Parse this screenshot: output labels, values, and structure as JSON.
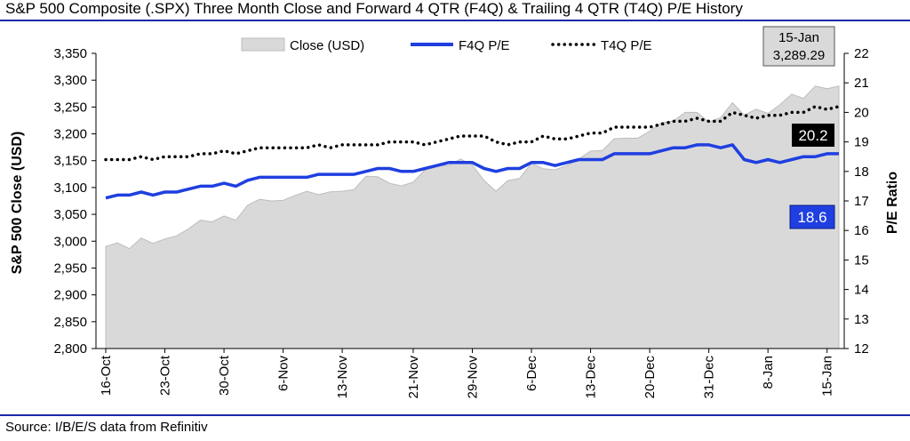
{
  "header": {
    "title": "S&P 500 Composite (.SPX) Three Month Close and Forward 4 QTR (F4Q) & Trailing 4 QTR (T4Q) P/E History"
  },
  "footer": {
    "source": "Source: I/B/E/S data from Refinitiv"
  },
  "colors": {
    "rule": "#1a28a8",
    "area_fill": "#d9d9d9",
    "area_stroke": "#bdbdbd",
    "f4q_line": "#1f3fe0",
    "t4q_line": "#000000",
    "badge_t4q_bg": "#000000",
    "badge_f4q_bg": "#1f3fe0",
    "box_bg": "#d9d9d9"
  },
  "chart_data": {
    "type": "area",
    "xlabel": "",
    "ylabel": "S&P 500 Close (USD)",
    "y2label": "P/E Ratio",
    "ylim": [
      2800,
      3350
    ],
    "y2lim": [
      12,
      22
    ],
    "yticks": [
      "2,800",
      "2,850",
      "2,900",
      "2,950",
      "3,000",
      "3,050",
      "3,100",
      "3,150",
      "3,200",
      "3,250",
      "3,300",
      "3,350"
    ],
    "y2ticks": [
      "12",
      "13",
      "14",
      "15",
      "16",
      "17",
      "18",
      "19",
      "20",
      "21",
      "22"
    ],
    "xticks": [
      {
        "label": "16-Oct",
        "i": 0
      },
      {
        "label": "23-Oct",
        "i": 5
      },
      {
        "label": "30-Oct",
        "i": 10
      },
      {
        "label": "6-Nov",
        "i": 15
      },
      {
        "label": "13-Nov",
        "i": 20
      },
      {
        "label": "21-Nov",
        "i": 26
      },
      {
        "label": "29-Nov",
        "i": 31
      },
      {
        "label": "6-Dec",
        "i": 36
      },
      {
        "label": "13-Dec",
        "i": 41
      },
      {
        "label": "20-Dec",
        "i": 46
      },
      {
        "label": "31-Dec",
        "i": 51
      },
      {
        "label": "8-Jan",
        "i": 56
      },
      {
        "label": "15-Jan",
        "i": 61
      }
    ],
    "grid": false,
    "legend_position": "top",
    "series": [
      {
        "name": "Close (USD)",
        "type": "area",
        "axis": "left",
        "values": [
          2990,
          2997,
          2986,
          3006,
          2996,
          3004,
          3010,
          3023,
          3039,
          3036,
          3047,
          3039,
          3067,
          3078,
          3075,
          3076,
          3085,
          3093,
          3087,
          3092,
          3093,
          3096,
          3121,
          3120,
          3108,
          3103,
          3110,
          3133,
          3141,
          3141,
          3153,
          3142,
          3113,
          3093,
          3113,
          3117,
          3145,
          3135,
          3133,
          3141,
          3153,
          3168,
          3169,
          3191,
          3192,
          3192,
          3205,
          3221,
          3224,
          3240,
          3240,
          3222,
          3230,
          3258,
          3235,
          3246,
          3238,
          3254,
          3274,
          3266,
          3289,
          3284,
          3289
        ]
      },
      {
        "name": "F4Q P/E",
        "type": "line",
        "axis": "right",
        "values": [
          17.1,
          17.2,
          17.2,
          17.3,
          17.2,
          17.3,
          17.3,
          17.4,
          17.5,
          17.5,
          17.6,
          17.5,
          17.7,
          17.8,
          17.8,
          17.8,
          17.8,
          17.8,
          17.9,
          17.9,
          17.9,
          17.9,
          18.0,
          18.1,
          18.1,
          18.0,
          18.0,
          18.1,
          18.2,
          18.3,
          18.3,
          18.3,
          18.1,
          18.0,
          18.1,
          18.1,
          18.3,
          18.3,
          18.2,
          18.3,
          18.4,
          18.4,
          18.4,
          18.6,
          18.6,
          18.6,
          18.6,
          18.7,
          18.8,
          18.8,
          18.9,
          18.9,
          18.8,
          18.9,
          18.4,
          18.3,
          18.4,
          18.3,
          18.4,
          18.5,
          18.5,
          18.6,
          18.6
        ]
      },
      {
        "name": "T4Q P/E",
        "type": "line",
        "axis": "right",
        "values": [
          18.4,
          18.4,
          18.4,
          18.5,
          18.4,
          18.5,
          18.5,
          18.5,
          18.6,
          18.6,
          18.7,
          18.6,
          18.7,
          18.8,
          18.8,
          18.8,
          18.8,
          18.8,
          18.9,
          18.8,
          18.9,
          18.9,
          18.9,
          18.9,
          19.0,
          19.0,
          19.0,
          18.9,
          19.0,
          19.1,
          19.2,
          19.2,
          19.2,
          19.0,
          18.9,
          19.0,
          19.0,
          19.2,
          19.1,
          19.1,
          19.2,
          19.3,
          19.3,
          19.5,
          19.5,
          19.5,
          19.5,
          19.6,
          19.7,
          19.7,
          19.8,
          19.7,
          19.7,
          20.0,
          19.9,
          19.8,
          19.9,
          19.9,
          20.0,
          20.0,
          20.2,
          20.1,
          20.2
        ]
      }
    ],
    "annotations": {
      "last_date": "15-Jan",
      "last_close": "3,289.29",
      "t4q_last": "20.2",
      "f4q_last": "18.6"
    }
  }
}
